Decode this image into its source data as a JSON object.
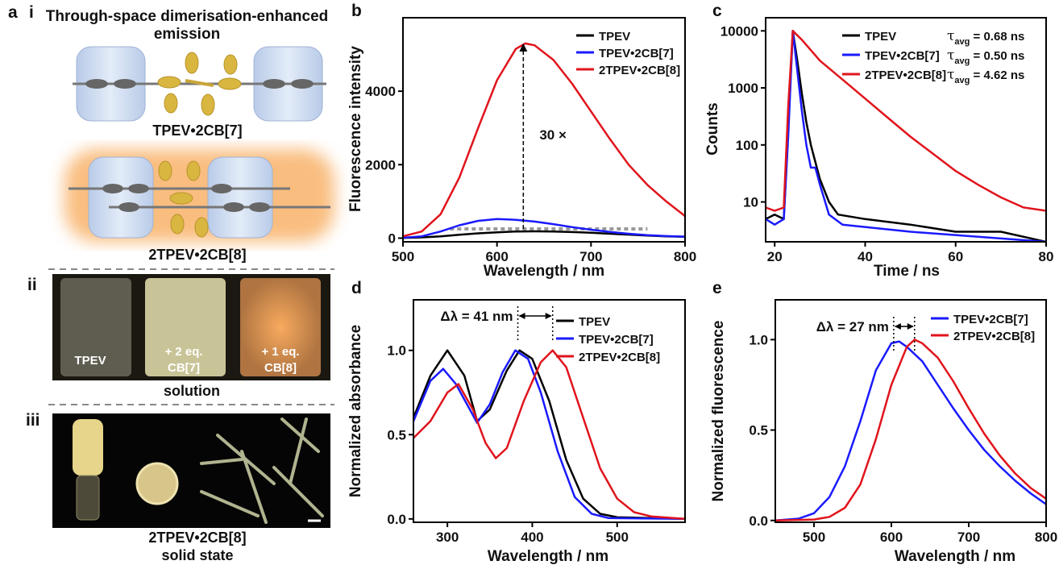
{
  "panel_labels": [
    "a",
    "b",
    "c",
    "d",
    "e"
  ],
  "panel_a": {
    "sub_labels": [
      "i",
      "ii",
      "iii"
    ],
    "title_lines": [
      "Through-space dimerisation-enhanced",
      "emission"
    ],
    "molecule_labels": [
      "TPEV•2CB[7]",
      "2TPEV•2CB[8]"
    ],
    "photo_labels": [
      [
        "TPEV"
      ],
      [
        "+ 2 eq.",
        "CB[7]"
      ],
      [
        "+ 1 eq.",
        "CB[8]"
      ]
    ],
    "solution_caption": "solution",
    "solid_caption": [
      "2TPEV•2CB[8]",
      "solid state"
    ]
  },
  "chart_data": [
    {
      "type": "line",
      "xlabel": "Wavelength / nm",
      "ylabel": "Fluorescence intensity",
      "xlim": [
        500,
        800
      ],
      "xticks": [
        500,
        600,
        700,
        800
      ],
      "ylim": [
        -100,
        6000
      ],
      "yticks": [
        0,
        2000,
        4000
      ],
      "series": [
        {
          "name": "TPEV",
          "color": "#000000",
          "x": [
            500,
            520,
            540,
            560,
            580,
            600,
            620,
            640,
            660,
            680,
            700,
            720,
            740,
            760,
            780,
            800
          ],
          "values": [
            5,
            20,
            50,
            90,
            130,
            160,
            180,
            185,
            180,
            165,
            145,
            120,
            95,
            70,
            50,
            35
          ]
        },
        {
          "name": "TPEV•2CB[7]",
          "color": "#1a1aff",
          "x": [
            500,
            520,
            540,
            560,
            580,
            600,
            620,
            640,
            660,
            680,
            700,
            720,
            740,
            760,
            780,
            800
          ],
          "values": [
            10,
            50,
            180,
            350,
            470,
            520,
            500,
            450,
            380,
            300,
            230,
            170,
            120,
            80,
            55,
            40
          ]
        },
        {
          "name": "2TPEV•2CB[8]",
          "color": "#e0141c",
          "x": [
            500,
            520,
            540,
            560,
            580,
            600,
            620,
            630,
            640,
            660,
            680,
            700,
            720,
            740,
            760,
            780,
            800
          ],
          "values": [
            50,
            180,
            650,
            1650,
            3000,
            4300,
            5150,
            5300,
            5250,
            4850,
            4200,
            3450,
            2700,
            2000,
            1450,
            1000,
            600
          ]
        }
      ],
      "arrow": {
        "x": 628,
        "y": [
          250,
          5300
        ],
        "label": "30 ×"
      },
      "baseline_x": [
        550,
        760
      ]
    },
    {
      "type": "line",
      "xlabel": "Time / ns",
      "ylabel": "Counts",
      "log_y": true,
      "xlim": [
        18,
        80
      ],
      "xticks": [
        20,
        40,
        60,
        80
      ],
      "ylim": [
        2,
        17000
      ],
      "yticks": [
        10,
        100,
        1000,
        10000
      ],
      "series": [
        {
          "name": "TPEV",
          "color": "#000000",
          "x": [
            18,
            20,
            22,
            23,
            24,
            25,
            26,
            27,
            28,
            29,
            30,
            32,
            34,
            40,
            50,
            60,
            70,
            80
          ],
          "values": [
            5,
            6,
            5,
            200,
            10000,
            3000,
            800,
            250,
            100,
            50,
            25,
            10,
            6,
            5,
            4,
            3,
            3,
            2
          ]
        },
        {
          "name": "TPEV•2CB[7]",
          "color": "#1a1aff",
          "x": [
            18,
            20,
            22,
            23,
            24,
            25,
            26,
            27,
            28,
            29,
            30,
            32,
            35,
            50,
            80
          ],
          "values": [
            5,
            4,
            5,
            150,
            10000,
            2000,
            400,
            100,
            40,
            40,
            20,
            6,
            4,
            3,
            2
          ]
        },
        {
          "name": "2TPEV•2CB[8]",
          "color": "#e0141c",
          "x": [
            18,
            20,
            22,
            23,
            24,
            26,
            30,
            35,
            40,
            45,
            50,
            55,
            60,
            65,
            70,
            75,
            80
          ],
          "values": [
            8,
            7,
            8,
            500,
            10000,
            7000,
            3000,
            1400,
            650,
            300,
            140,
            70,
            35,
            20,
            12,
            8,
            7
          ]
        }
      ],
      "lifetimes": [
        {
          "symbol": "τ",
          "subscript": "avg",
          "text": " = 0.68 ns"
        },
        {
          "symbol": "τ",
          "subscript": "avg",
          "text": " = 0.50 ns"
        },
        {
          "symbol": "τ",
          "subscript": "avg",
          "text": " = 4.62 ns"
        }
      ]
    },
    {
      "type": "line",
      "xlabel": "Wavelength / nm",
      "ylabel": "Normalized absorbance",
      "xlim": [
        260,
        580
      ],
      "xticks": [
        300,
        400,
        500
      ],
      "ylim": [
        -0.02,
        1.3
      ],
      "yticks": [
        {
          "value": 0,
          "label": "0.0"
        },
        {
          "value": 0.5,
          "label": "0.5"
        },
        {
          "value": 1,
          "label": "1.0"
        }
      ],
      "series": [
        {
          "name": "TPEV",
          "color": "#000000",
          "x": [
            260,
            280,
            300,
            320,
            335,
            350,
            370,
            385,
            400,
            420,
            440,
            460,
            480,
            500,
            580
          ],
          "values": [
            0.6,
            0.85,
            1.0,
            0.85,
            0.58,
            0.65,
            0.88,
            1.0,
            0.95,
            0.7,
            0.35,
            0.12,
            0.03,
            0.01,
            0
          ]
        },
        {
          "name": "TPEV•2CB[7]",
          "color": "#1a1aff",
          "x": [
            260,
            280,
            295,
            310,
            335,
            350,
            365,
            380,
            395,
            410,
            430,
            450,
            470,
            490,
            580
          ],
          "values": [
            0.58,
            0.82,
            0.89,
            0.8,
            0.57,
            0.68,
            0.87,
            1.0,
            0.95,
            0.75,
            0.4,
            0.13,
            0.03,
            0.005,
            0
          ]
        },
        {
          "name": "2TPEV•2CB[8]",
          "color": "#e0141c",
          "x": [
            260,
            280,
            300,
            313,
            330,
            345,
            357,
            370,
            390,
            410,
            424,
            440,
            460,
            480,
            500,
            520,
            540,
            580
          ],
          "values": [
            0.48,
            0.58,
            0.75,
            0.8,
            0.65,
            0.45,
            0.36,
            0.42,
            0.7,
            0.93,
            1.0,
            0.9,
            0.6,
            0.3,
            0.12,
            0.04,
            0.015,
            0
          ]
        }
      ],
      "shift": {
        "x": [
          383,
          424
        ],
        "label": "Δλ = 41 nm"
      }
    },
    {
      "type": "line",
      "xlabel": "Wavelength / nm",
      "ylabel": "Normalized fluorescence",
      "xlim": [
        450,
        800
      ],
      "xticks": [
        500,
        600,
        700,
        800
      ],
      "ylim": [
        -0.01,
        1.22
      ],
      "yticks": [
        {
          "value": 0,
          "label": "0.0"
        },
        {
          "value": 0.5,
          "label": "0.5"
        },
        {
          "value": 1,
          "label": "1.0"
        }
      ],
      "series": [
        {
          "name": "TPEV•2CB[7]",
          "color": "#1a1aff",
          "x": [
            450,
            480,
            500,
            520,
            540,
            560,
            580,
            600,
            610,
            620,
            640,
            660,
            680,
            700,
            720,
            740,
            760,
            780,
            800
          ],
          "values": [
            0,
            0.01,
            0.04,
            0.13,
            0.3,
            0.55,
            0.83,
            0.98,
            0.99,
            0.96,
            0.88,
            0.75,
            0.62,
            0.5,
            0.39,
            0.3,
            0.22,
            0.15,
            0.09
          ]
        },
        {
          "name": "2TPEV•2CB[8]",
          "color": "#e0141c",
          "x": [
            450,
            500,
            520,
            540,
            560,
            580,
            600,
            620,
            630,
            640,
            660,
            680,
            700,
            720,
            740,
            760,
            780,
            800
          ],
          "values": [
            0,
            0.005,
            0.02,
            0.07,
            0.2,
            0.45,
            0.75,
            0.96,
            1.0,
            0.98,
            0.9,
            0.77,
            0.62,
            0.48,
            0.36,
            0.26,
            0.18,
            0.12
          ]
        }
      ],
      "shift": {
        "x": [
          603,
          630
        ],
        "label": "Δλ = 27 nm"
      }
    }
  ]
}
